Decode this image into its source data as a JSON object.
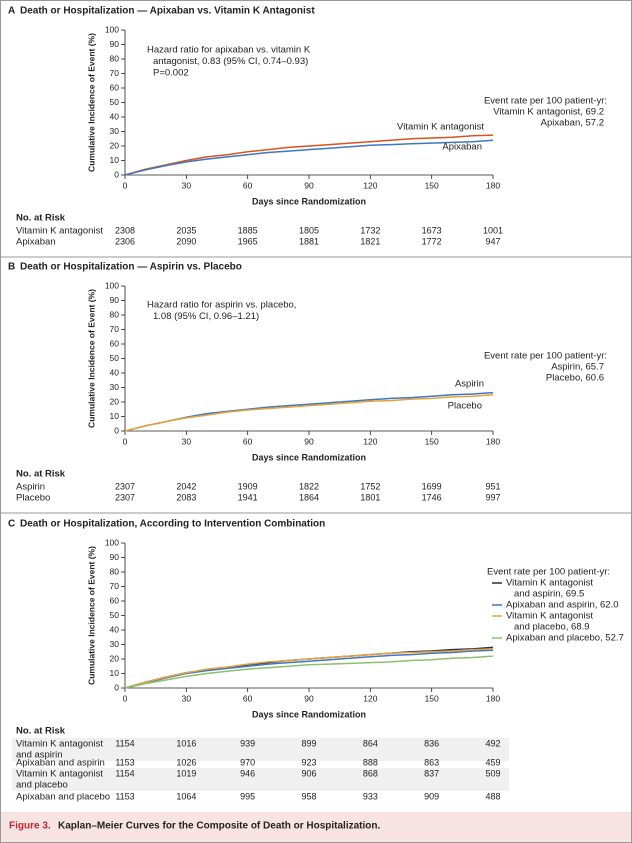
{
  "chart_data": [
    {
      "type": "line",
      "panel": "A",
      "title": "Death or Hospitalization — Apixaban vs. Vitamin K Antagonist",
      "xlabel": "Days since Randomization",
      "ylabel": "Cumulative Incidence of Event (%)",
      "xlim": [
        0,
        180
      ],
      "xticks": [
        0,
        30,
        60,
        90,
        120,
        150,
        180
      ],
      "ylim": [
        0,
        100
      ],
      "yticks": [
        0,
        10,
        20,
        30,
        40,
        50,
        60,
        70,
        80,
        90,
        100
      ],
      "annotation": [
        "Hazard ratio for apixaban vs. vitamin K",
        "antagonist, 0.83 (95% CI, 0.74–0.93)",
        "P=0.002"
      ],
      "event_rate_title": "Event rate per 100 patient-yr:",
      "series": [
        {
          "name": "Vitamin K antagonist",
          "color": "#d9531e",
          "event_rate_lines": [
            "Vitamin K antagonist, 69.2"
          ],
          "x": [
            0,
            10,
            20,
            30,
            40,
            50,
            60,
            70,
            80,
            90,
            100,
            110,
            120,
            130,
            140,
            150,
            160,
            170,
            180
          ],
          "values": [
            0,
            4,
            7,
            10,
            12.5,
            14,
            16,
            17.5,
            19,
            20,
            21,
            22,
            23,
            24,
            25,
            25.5,
            26,
            27,
            27.5
          ]
        },
        {
          "name": "Apixaban",
          "color": "#3c78c3",
          "event_rate_lines": [
            "Apixaban, 57.2"
          ],
          "x": [
            0,
            10,
            20,
            30,
            40,
            50,
            60,
            70,
            80,
            90,
            100,
            110,
            120,
            130,
            140,
            150,
            160,
            170,
            180
          ],
          "values": [
            0,
            3.5,
            6.5,
            9,
            11,
            12.5,
            14,
            15.5,
            16.5,
            17.5,
            18.5,
            19.5,
            20.5,
            21,
            21.5,
            22,
            22.5,
            23,
            24
          ]
        }
      ],
      "risk_table": {
        "header": "No. at Risk",
        "rows": [
          {
            "name": [
              "Vitamin K antagonist"
            ],
            "counts": [
              2308,
              2035,
              1885,
              1805,
              1732,
              1673,
              1001
            ]
          },
          {
            "name": [
              "Apixaban"
            ],
            "counts": [
              2306,
              2090,
              1965,
              1881,
              1821,
              1772,
              947
            ]
          }
        ]
      }
    },
    {
      "type": "line",
      "panel": "B",
      "title": "Death or Hospitalization — Aspirin vs. Placebo",
      "xlabel": "Days since Randomization",
      "ylabel": "Cumulative Incidence of Event (%)",
      "xlim": [
        0,
        180
      ],
      "xticks": [
        0,
        30,
        60,
        90,
        120,
        150,
        180
      ],
      "ylim": [
        0,
        100
      ],
      "yticks": [
        0,
        10,
        20,
        30,
        40,
        50,
        60,
        70,
        80,
        90,
        100
      ],
      "annotation": [
        "Hazard ratio for aspirin vs. placebo,",
        "1.08 (95% CI, 0.96–1.21)"
      ],
      "event_rate_title": "Event rate per 100 patient-yr:",
      "series": [
        {
          "name": "Aspirin",
          "color": "#3c78c3",
          "event_rate_lines": [
            "Aspirin, 65.7"
          ],
          "x": [
            0,
            10,
            20,
            30,
            40,
            50,
            60,
            70,
            80,
            90,
            100,
            110,
            120,
            130,
            140,
            150,
            160,
            170,
            180
          ],
          "values": [
            0,
            3.5,
            6.5,
            9.5,
            12,
            13.5,
            15,
            16.5,
            17.5,
            18.5,
            19.5,
            20.5,
            21.5,
            22.5,
            23,
            24,
            25,
            25.5,
            26.5
          ]
        },
        {
          "name": "Placebo",
          "color": "#e8a23a",
          "event_rate_lines": [
            "Placebo, 60.6"
          ],
          "x": [
            0,
            10,
            20,
            30,
            40,
            50,
            60,
            70,
            80,
            90,
            100,
            110,
            120,
            130,
            140,
            150,
            160,
            170,
            180
          ],
          "values": [
            0,
            3.5,
            6.5,
            9,
            11,
            13,
            14.5,
            15.5,
            16.5,
            17.5,
            18.5,
            19.5,
            20.5,
            21,
            22,
            22.5,
            23.5,
            24,
            25
          ]
        }
      ],
      "risk_table": {
        "header": "No. at Risk",
        "rows": [
          {
            "name": [
              "Aspirin"
            ],
            "counts": [
              2307,
              2042,
              1909,
              1822,
              1752,
              1699,
              951
            ]
          },
          {
            "name": [
              "Placebo"
            ],
            "counts": [
              2307,
              2083,
              1941,
              1864,
              1801,
              1746,
              997
            ]
          }
        ]
      }
    },
    {
      "type": "line",
      "panel": "C",
      "title": "Death or Hospitalization, According to Intervention Combination",
      "xlabel": "Days since Randomization",
      "ylabel": "Cumulative Incidence of Event (%)",
      "xlim": [
        0,
        180
      ],
      "xticks": [
        0,
        30,
        60,
        90,
        120,
        150,
        180
      ],
      "ylim": [
        0,
        100
      ],
      "yticks": [
        0,
        10,
        20,
        30,
        40,
        50,
        60,
        70,
        80,
        90,
        100
      ],
      "event_rate_title": "Event rate per 100 patient-yr:",
      "series": [
        {
          "name": "Vitamin K antagonist and aspirin",
          "color": "#1f2f5c",
          "event_rate_lines": [
            "Vitamin K antagonist",
            "and aspirin, 69.5"
          ],
          "x": [
            0,
            10,
            20,
            30,
            40,
            50,
            60,
            70,
            80,
            90,
            100,
            110,
            120,
            130,
            140,
            150,
            160,
            170,
            180
          ],
          "values": [
            0,
            4,
            7.5,
            10.5,
            12.5,
            14,
            16,
            17.5,
            19,
            20,
            21,
            22,
            23,
            24,
            25,
            25.5,
            26.5,
            27,
            28
          ]
        },
        {
          "name": "Apixaban and aspirin",
          "color": "#3c78c3",
          "event_rate_lines": [
            "Apixaban and aspirin, 62.0"
          ],
          "x": [
            0,
            10,
            20,
            30,
            40,
            50,
            60,
            70,
            80,
            90,
            100,
            110,
            120,
            130,
            140,
            150,
            160,
            170,
            180
          ],
          "values": [
            0,
            3.5,
            7,
            10,
            12,
            13.5,
            15,
            16.5,
            17.5,
            18.5,
            19.5,
            20.5,
            21.5,
            22.5,
            23,
            24,
            24.5,
            25.5,
            26
          ]
        },
        {
          "name": "Vitamin K antagonist and placebo",
          "color": "#e8a23a",
          "event_rate_lines": [
            "Vitamin K antagonist",
            "and placebo, 68.9"
          ],
          "x": [
            0,
            10,
            20,
            30,
            40,
            50,
            60,
            70,
            80,
            90,
            100,
            110,
            120,
            130,
            140,
            150,
            160,
            170,
            180
          ],
          "values": [
            0,
            4,
            7.5,
            10.5,
            13,
            14.5,
            16.5,
            18,
            19,
            20,
            21,
            22,
            23,
            24,
            24.5,
            25,
            25.5,
            26.5,
            27
          ]
        },
        {
          "name": "Apixaban and placebo",
          "color": "#8cc06a",
          "event_rate_lines": [
            "Apixaban and placebo, 52.7"
          ],
          "x": [
            0,
            10,
            20,
            30,
            40,
            50,
            60,
            70,
            80,
            90,
            100,
            110,
            120,
            130,
            140,
            150,
            160,
            170,
            180
          ],
          "values": [
            0,
            3,
            5.5,
            8,
            10,
            11.5,
            13,
            14,
            15,
            16,
            16.5,
            17,
            17.5,
            18,
            19,
            19.5,
            20.5,
            21,
            22
          ]
        }
      ],
      "risk_table": {
        "header": "No. at Risk",
        "rows": [
          {
            "name": [
              "Vitamin K antagonist",
              "and aspirin"
            ],
            "counts": [
              1154,
              1016,
              939,
              899,
              864,
              836,
              492
            ]
          },
          {
            "name": [
              "Apixaban and aspirin"
            ],
            "counts": [
              1153,
              1026,
              970,
              923,
              888,
              863,
              459
            ]
          },
          {
            "name": [
              "Vitamin K antagonist",
              "and placebo"
            ],
            "counts": [
              1154,
              1019,
              946,
              906,
              868,
              837,
              509
            ]
          },
          {
            "name": [
              "Apixaban and placebo"
            ],
            "counts": [
              1153,
              1064,
              995,
              958,
              933,
              909,
              488
            ]
          }
        ]
      }
    }
  ],
  "caption": {
    "label": "Figure 3.",
    "text": "Kaplan–Meier Curves for the Composite of Death or Hospitalization."
  }
}
